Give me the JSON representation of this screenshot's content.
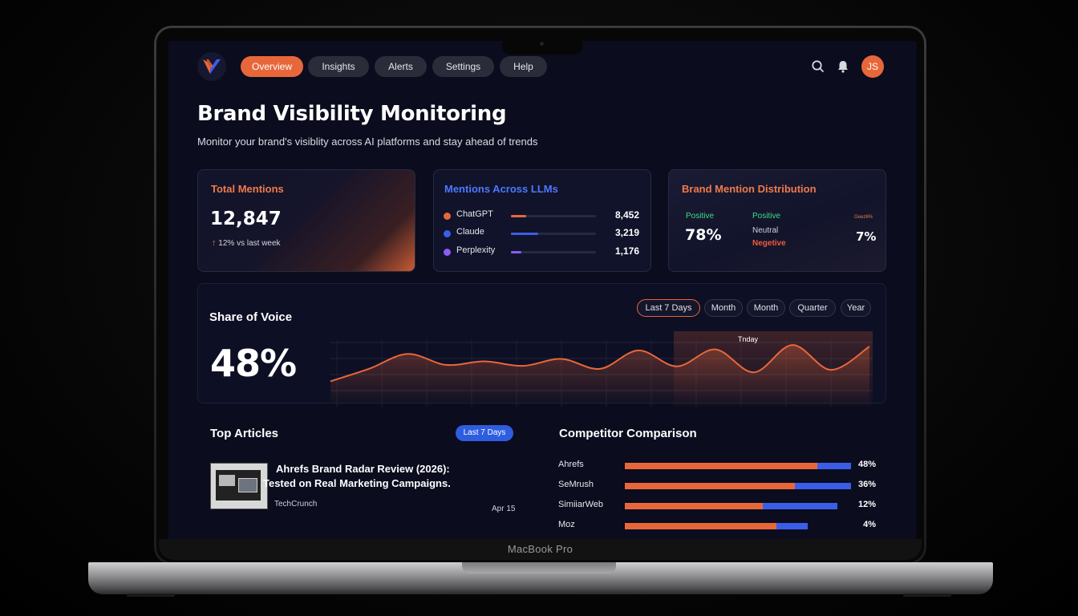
{
  "nav": {
    "items": [
      {
        "label": "Overview",
        "active": true
      },
      {
        "label": "Insights",
        "active": false
      },
      {
        "label": "Alerts",
        "active": false
      },
      {
        "label": "Settings",
        "active": false
      },
      {
        "label": "Help",
        "active": false
      }
    ],
    "avatar_initials": "JS",
    "icons": [
      "search-icon",
      "bell-icon"
    ]
  },
  "page": {
    "title": "Brand Visibility Monitoring",
    "subtitle": "Monitor your brand's visiblity across AI platforms and stay ahead of trends"
  },
  "total_mentions": {
    "title": "Total Mentions",
    "value": "12,847",
    "delta": "12% vs last week"
  },
  "llm_mentions": {
    "title": "Mentions Across LLMs",
    "rows": [
      {
        "name": "ChatGPT",
        "value": "8,452",
        "color": "#e8673a",
        "fill": 0.18
      },
      {
        "name": "Claude",
        "value": "3,219",
        "color": "#3b5ee8",
        "fill": 0.32
      },
      {
        "name": "Perplexity",
        "value": "1,176",
        "color": "#8b5cf6",
        "fill": 0.12
      }
    ]
  },
  "distribution": {
    "title": "Brand Mention Distribution",
    "positive_label": "Positive",
    "positive_value": "78%",
    "legend_positive": "Positive",
    "legend_neutral": "Neutral",
    "legend_negative": "Negetive",
    "small_label": "Geez6%",
    "right_value": "7%"
  },
  "share_of_voice": {
    "title": "Share of Voice",
    "value": "48%",
    "filters": [
      {
        "label": "Last 7 Days",
        "active": true
      },
      {
        "label": "Month",
        "active": false
      },
      {
        "label": "Month",
        "active": false
      },
      {
        "label": "Quarter",
        "active": false
      },
      {
        "label": "Year",
        "active": false
      }
    ],
    "today_label": "Tnday"
  },
  "chart_data": {
    "type": "area",
    "title": "",
    "series": [
      {
        "values": [
          0.22,
          0.47,
          0.77,
          0.55,
          0.62,
          0.53,
          0.67,
          0.47,
          0.84,
          0.52,
          0.86,
          0.4,
          0.95,
          0.45,
          0.92
        ]
      }
    ],
    "highlight": "Tnday",
    "color": "#e8673a"
  },
  "articles": {
    "title": "Top Articles",
    "badge": "Last 7 Days",
    "items": [
      {
        "title_line1": "Ahrefs Brand Radar Review (2026):",
        "title_line2": "Tested on Real Marketing Campaigns.",
        "source": "TechCrunch",
        "date": "Apr 15"
      }
    ]
  },
  "competitors": {
    "title": "Competitor Comparison",
    "rows": [
      {
        "name": "Ahrefs",
        "orange": 0.85,
        "blue": 0.15,
        "pct": "48%"
      },
      {
        "name": "SeMrush",
        "orange": 0.75,
        "blue": 0.25,
        "pct": "36%"
      },
      {
        "name": "SimiiarWeb",
        "orange": 0.61,
        "blue": 0.33,
        "pct": "12%"
      },
      {
        "name": "Moz",
        "orange": 0.67,
        "blue": 0.14,
        "pct": "4%"
      }
    ]
  }
}
